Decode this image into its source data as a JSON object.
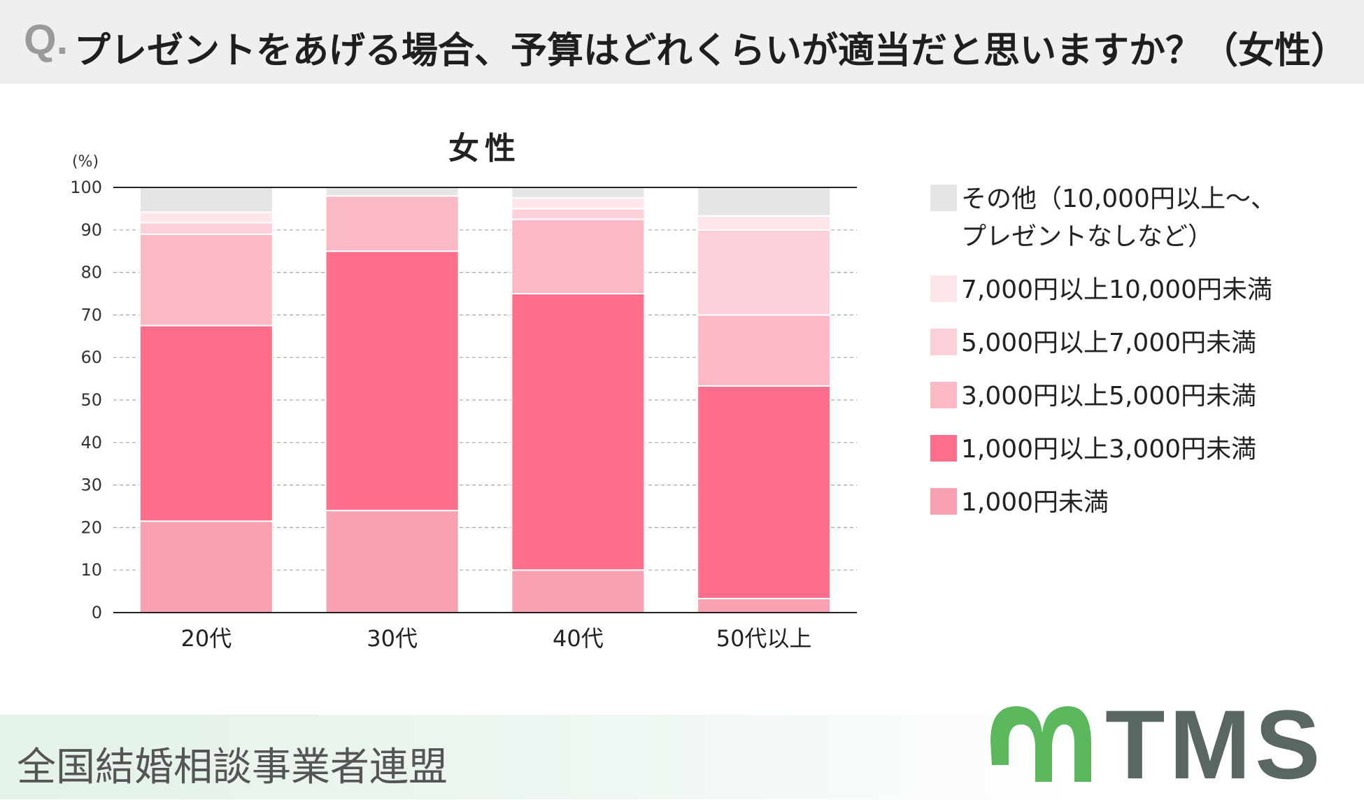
{
  "header": {
    "q_mark": "Q.",
    "title": "プレゼントをあげる場合、予算はどれくらいが適当だと思いますか？（女性）"
  },
  "chart_data": {
    "type": "bar",
    "stacked": true,
    "title": "女性",
    "ylabel": "(%)",
    "ylim": [
      0,
      100
    ],
    "yticks": [
      0,
      10,
      20,
      30,
      40,
      50,
      60,
      70,
      80,
      90,
      100
    ],
    "grid": true,
    "legend_position": "right",
    "categories": [
      "20代",
      "30代",
      "40代",
      "50代以上"
    ],
    "series": [
      {
        "name": "1,000円未満",
        "color": "#f7a1b1",
        "values": [
          21.5,
          24.0,
          10.0,
          3.3
        ]
      },
      {
        "name": "1,000円以上3,000円未満",
        "color": "#ff6f8b",
        "values": [
          46.0,
          61.0,
          65.0,
          50.0
        ]
      },
      {
        "name": "3,000円以上5,000円未満",
        "color": "#fbb9c5",
        "values": [
          21.5,
          13.0,
          17.5,
          16.7
        ]
      },
      {
        "name": "5,000円以上7,000円未満",
        "color": "#fcd0d8",
        "values": [
          2.7,
          0.0,
          2.5,
          20.0
        ]
      },
      {
        "name": "7,000円以上10,000円未満",
        "color": "#fde6ea",
        "values": [
          2.5,
          0.0,
          2.5,
          3.3
        ]
      },
      {
        "name": "その他（10,000円以上〜、\nプレゼントなしなど）",
        "color": "#e5e5e5",
        "values": [
          5.8,
          2.0,
          2.5,
          6.7
        ]
      }
    ]
  },
  "footer": {
    "organization": "全国結婚相談事業者連盟",
    "logo_text": "TMS",
    "logo_color": "#5a6662",
    "logo_mark_color": "#5cb85c"
  }
}
